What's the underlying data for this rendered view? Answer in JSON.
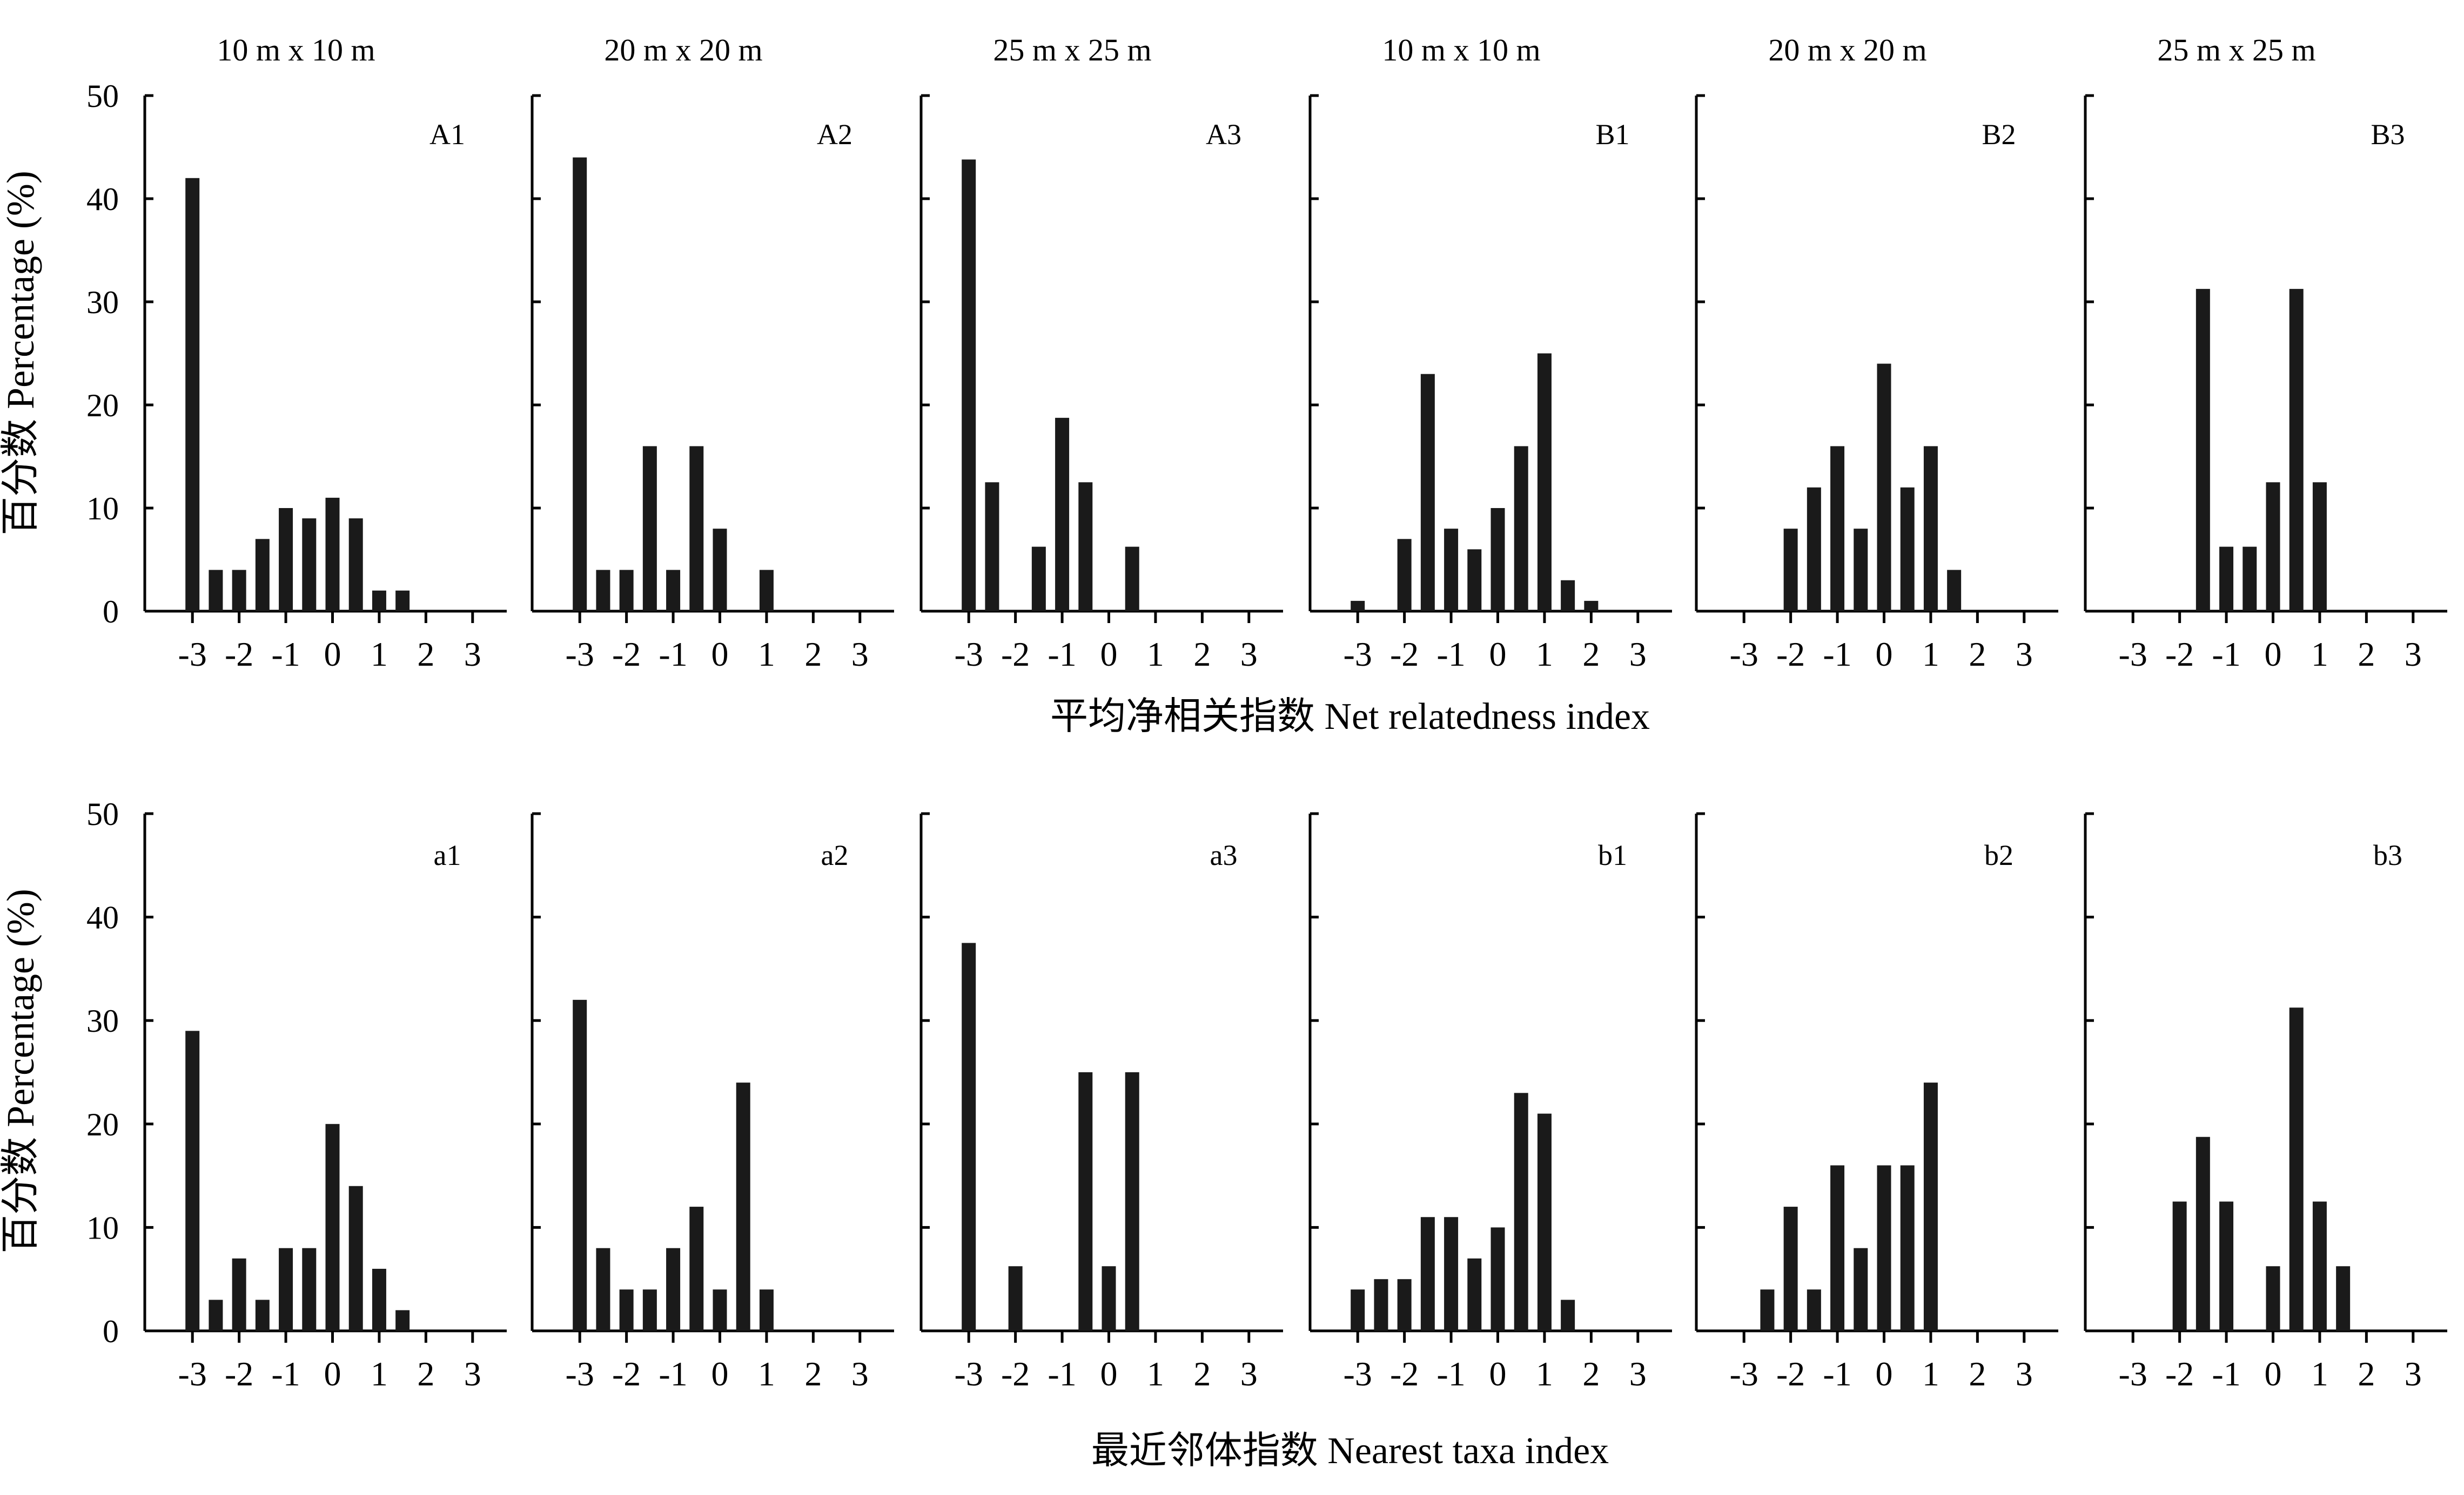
{
  "chart_data": {
    "type": "bar",
    "rows": [
      {
        "xlabel": "平均净相关指数 Net relatedness index",
        "ylabel": "百分数 Percentage (%)",
        "panels": [
          {
            "label": "A1",
            "scale": "10 m x 10 m",
            "bins": [
              -3,
              -2.5,
              -2,
              -1.5,
              -1,
              -0.5,
              0,
              0.5,
              1,
              1.5
            ],
            "values": [
              42,
              4,
              4,
              7,
              10,
              9,
              11,
              9,
              2,
              2
            ]
          },
          {
            "label": "A2",
            "scale": "20 m x 20 m",
            "bins": [
              -3,
              -2.5,
              -2,
              -1.5,
              -1,
              -0.5,
              0,
              1
            ],
            "values": [
              44,
              4,
              4,
              16,
              4,
              16,
              8,
              4
            ]
          },
          {
            "label": "A3",
            "scale": "25 m x 25 m",
            "bins": [
              -3,
              -2.5,
              -1.5,
              -1,
              -0.5,
              0.5
            ],
            "values": [
              43.8,
              12.5,
              6.25,
              18.75,
              12.5,
              6.25
            ]
          },
          {
            "label": "B1",
            "scale": "10 m x 10 m",
            "bins": [
              -3,
              -2,
              -1.5,
              -1,
              -0.5,
              0,
              0.5,
              1,
              1.5,
              2
            ],
            "values": [
              1,
              7,
              23,
              8,
              6,
              10,
              16,
              25,
              3,
              1
            ]
          },
          {
            "label": "B2",
            "scale": "20 m x 20 m",
            "bins": [
              -2,
              -1.5,
              -1,
              -0.5,
              0,
              0.5,
              1,
              1.5
            ],
            "values": [
              8,
              12,
              16,
              8,
              24,
              12,
              16,
              4
            ]
          },
          {
            "label": "B3",
            "scale": "25 m x 25 m",
            "bins": [
              -1.5,
              -1,
              -0.5,
              0,
              0.5,
              1
            ],
            "values": [
              31.25,
              6.25,
              6.25,
              12.5,
              31.25,
              12.5
            ]
          }
        ]
      },
      {
        "xlabel": "最近邻体指数 Nearest taxa index",
        "ylabel": "百分数 Percentage (%)",
        "panels": [
          {
            "label": "a1",
            "scale": "",
            "bins": [
              -3,
              -2.5,
              -2,
              -1.5,
              -1,
              -0.5,
              0,
              0.5,
              1,
              1.5
            ],
            "values": [
              29,
              3,
              7,
              3,
              8,
              8,
              20,
              14,
              6,
              2
            ]
          },
          {
            "label": "a2",
            "scale": "",
            "bins": [
              -3,
              -2.5,
              -2,
              -1.5,
              -1,
              -0.5,
              0,
              0.5,
              1
            ],
            "values": [
              32,
              8,
              4,
              4,
              8,
              12,
              4,
              24,
              4
            ]
          },
          {
            "label": "a3",
            "scale": "",
            "bins": [
              -3,
              -2,
              -0.5,
              0,
              0.5
            ],
            "values": [
              37.5,
              6.25,
              25,
              6.25,
              25
            ]
          },
          {
            "label": "b1",
            "scale": "",
            "bins": [
              -3,
              -2.5,
              -2,
              -1.5,
              -1,
              -0.5,
              0,
              0.5,
              1,
              1.5
            ],
            "values": [
              4,
              5,
              5,
              11,
              11,
              7,
              10,
              23,
              21,
              3
            ]
          },
          {
            "label": "b2",
            "scale": "",
            "bins": [
              -2.5,
              -2,
              -1.5,
              -1,
              -0.5,
              0,
              0.5,
              1
            ],
            "values": [
              4,
              12,
              4,
              16,
              8,
              16,
              16,
              24
            ]
          },
          {
            "label": "b3",
            "scale": "",
            "bins": [
              -2,
              -1.5,
              -1,
              0,
              0.5,
              1,
              1.5
            ],
            "values": [
              12.5,
              18.75,
              12.5,
              6.25,
              31.25,
              12.5,
              6.25
            ]
          }
        ]
      }
    ],
    "xticks": [
      "-3",
      "-2",
      "-1",
      "0",
      "1",
      "2",
      "3"
    ],
    "yticks": [
      "0",
      "10",
      "20",
      "30",
      "40",
      "50"
    ],
    "xlim": [
      -3.5,
      3.5
    ],
    "ylim": [
      0,
      50
    ],
    "grid": false,
    "colors": {
      "bar": "#1a1a1a",
      "axis": "#000000"
    }
  }
}
